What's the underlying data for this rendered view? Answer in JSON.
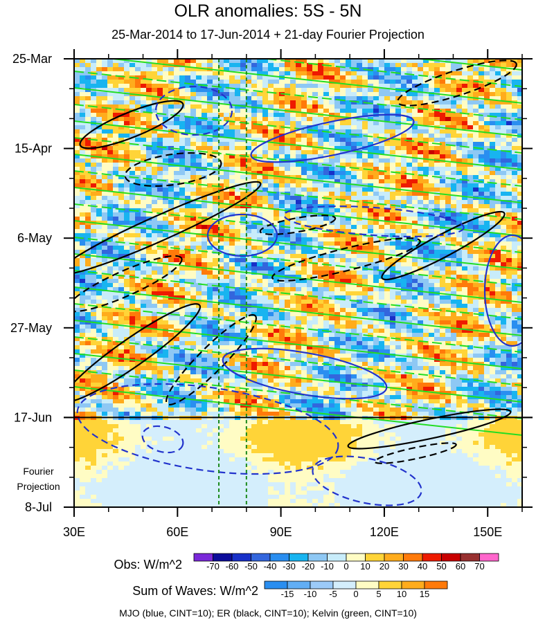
{
  "chart_data": {
    "type": "heatmap",
    "title": "OLR anomalies: 5S - 5N",
    "subtitle": "25-Mar-2014 to 17-Jun-2014 + 21-day Fourier Projection",
    "x_ticks": [
      "30E",
      "60E",
      "90E",
      "120E",
      "150E"
    ],
    "x_tick_values": [
      30,
      60,
      90,
      120,
      150
    ],
    "xlim": [
      30,
      160
    ],
    "y_ticks": [
      "25-Mar",
      "15-Apr",
      "6-May",
      "27-May",
      "17-Jun",
      "8-Jul"
    ],
    "y_tick_days": [
      0,
      21,
      42,
      63,
      84,
      105
    ],
    "ylim_days": [
      0,
      105
    ],
    "projection_label": "Fourier\nProjection",
    "projection_start_day": 84,
    "reference_lines_lon": [
      72,
      80
    ],
    "obs_colorbar": {
      "label": "Obs: W/m^2",
      "ticks": [
        "-70",
        "-60",
        "-50",
        "-40",
        "-30",
        "-20",
        "-10",
        "0",
        "10",
        "20",
        "30",
        "40",
        "50",
        "60",
        "70"
      ],
      "colors": [
        "#7a28d9",
        "#0c0c9a",
        "#1830c8",
        "#3366dd",
        "#2a8ef0",
        "#18b4f0",
        "#8ec8f4",
        "#c8ecfa",
        "#fffcc4",
        "#ffd438",
        "#ffac1c",
        "#ff7a0a",
        "#ee1a00",
        "#c80000",
        "#983030",
        "#ff66cc"
      ]
    },
    "waves_colorbar": {
      "label": "Sum of Waves: W/m^2",
      "ticks": [
        "-15",
        "-10",
        "-5",
        "0",
        "5",
        "10",
        "15"
      ],
      "colors": [
        "#2a8ef0",
        "#62aef4",
        "#9ccaf8",
        "#d4eefc",
        "#fffcc4",
        "#ffd438",
        "#ffac1c",
        "#ff7a0a"
      ]
    },
    "contour_note": "MJO (blue, CINT=10); ER (black, CINT=10); Kelvin (green, CINT=10)",
    "contour_colors": {
      "mjo": "#2233cc",
      "er": "#000000",
      "kelvin": "#22dd22"
    }
  }
}
